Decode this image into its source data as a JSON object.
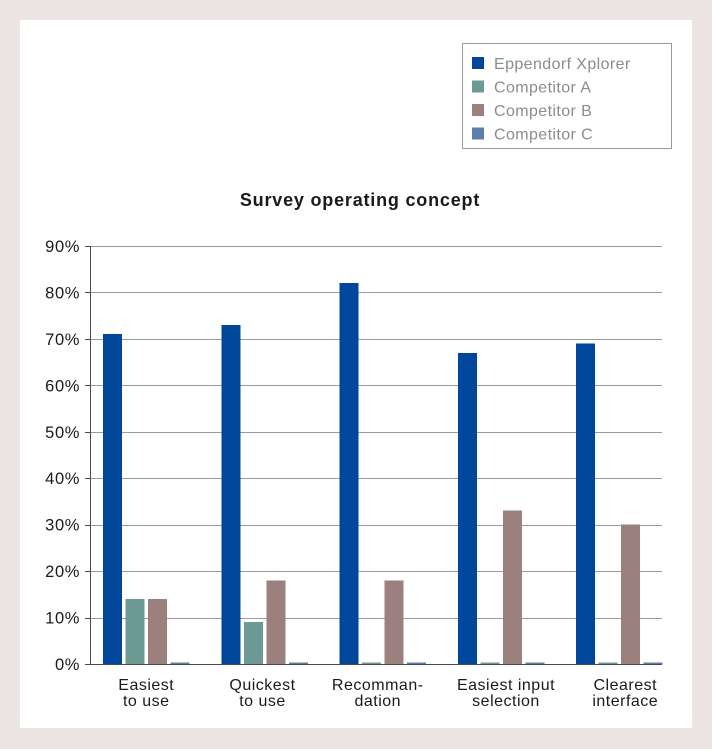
{
  "chart_data": {
    "type": "bar",
    "title": "Survey operating concept",
    "categories": [
      [
        "Easiest",
        "to use"
      ],
      [
        "Quickest",
        "to use"
      ],
      [
        "Recomman-",
        "dation"
      ],
      [
        "Easiest input",
        "selection"
      ],
      [
        "Clearest",
        "interface"
      ]
    ],
    "series": [
      {
        "name": "Eppendorf Xplorer",
        "values": [
          71,
          73,
          82,
          67,
          69
        ],
        "color": "#00479b"
      },
      {
        "name": "Competitor A",
        "values": [
          14,
          9,
          0,
          0,
          0
        ],
        "color": "#6d9a94"
      },
      {
        "name": "Competitor B",
        "values": [
          14,
          18,
          18,
          33,
          30
        ],
        "color": "#9b807d"
      },
      {
        "name": "Competitor C",
        "values": [
          0,
          0,
          0,
          0,
          0
        ],
        "color": "#5b7fa8"
      }
    ],
    "ylim": [
      0,
      90
    ],
    "yticks": [
      0,
      10,
      20,
      30,
      40,
      50,
      60,
      70,
      80,
      90
    ],
    "ytick_labels": [
      "0%",
      "10%",
      "20%",
      "30%",
      "40%",
      "50%",
      "60%",
      "70%",
      "80%",
      "90%"
    ],
    "grid": true,
    "legend": "top-right"
  }
}
